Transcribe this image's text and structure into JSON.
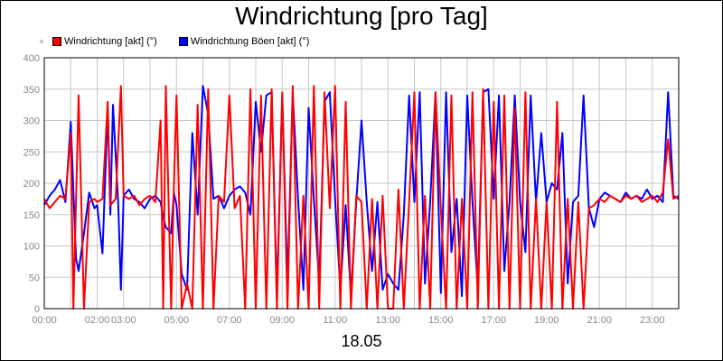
{
  "chart_data": {
    "type": "line",
    "title": "Windrichtung [pro Tag]",
    "subtitle": "18.05",
    "xlabel": "",
    "ylabel": "",
    "ylim": [
      0,
      400
    ],
    "yticks": [
      0,
      50,
      100,
      150,
      200,
      250,
      300,
      350,
      400
    ],
    "xlim": [
      0,
      24
    ],
    "xticks": [
      {
        "h": 0,
        "label": "00:00"
      },
      {
        "h": 2,
        "label": "02:00"
      },
      {
        "h": 3,
        "label": "03:00"
      },
      {
        "h": 5,
        "label": "05:00"
      },
      {
        "h": 7,
        "label": "07:00"
      },
      {
        "h": 9,
        "label": "09:00"
      },
      {
        "h": 11,
        "label": "11:00"
      },
      {
        "h": 13,
        "label": "13:00"
      },
      {
        "h": 15,
        "label": "15:00"
      },
      {
        "h": 17,
        "label": "17:00"
      },
      {
        "h": 19,
        "label": "19:00"
      },
      {
        "h": 21,
        "label": "21:00"
      },
      {
        "h": 23,
        "label": "23:00"
      }
    ],
    "grid": true,
    "legend_position": "top-left",
    "series": [
      {
        "name": "Windrichtung Böen [akt] (°)",
        "color": "#0000ff",
        "points": [
          [
            0.0,
            165
          ],
          [
            0.2,
            180
          ],
          [
            0.4,
            190
          ],
          [
            0.6,
            205
          ],
          [
            0.8,
            170
          ],
          [
            1.0,
            298
          ],
          [
            1.2,
            80
          ],
          [
            1.3,
            60
          ],
          [
            1.5,
            120
          ],
          [
            1.7,
            185
          ],
          [
            1.9,
            160
          ],
          [
            2.0,
            165
          ],
          [
            2.2,
            88
          ],
          [
            2.4,
            320
          ],
          [
            2.5,
            150
          ],
          [
            2.6,
            325
          ],
          [
            2.8,
            165
          ],
          [
            2.9,
            30
          ],
          [
            3.0,
            180
          ],
          [
            3.2,
            190
          ],
          [
            3.4,
            175
          ],
          [
            3.6,
            170
          ],
          [
            3.8,
            160
          ],
          [
            4.0,
            175
          ],
          [
            4.2,
            180
          ],
          [
            4.4,
            170
          ],
          [
            4.5,
            145
          ],
          [
            4.6,
            130
          ],
          [
            4.8,
            120
          ],
          [
            4.9,
            185
          ],
          [
            5.0,
            165
          ],
          [
            5.2,
            55
          ],
          [
            5.4,
            30
          ],
          [
            5.6,
            280
          ],
          [
            5.8,
            150
          ],
          [
            6.0,
            355
          ],
          [
            6.2,
            310
          ],
          [
            6.4,
            175
          ],
          [
            6.6,
            180
          ],
          [
            6.8,
            160
          ],
          [
            7.0,
            180
          ],
          [
            7.2,
            190
          ],
          [
            7.4,
            195
          ],
          [
            7.6,
            185
          ],
          [
            7.8,
            150
          ],
          [
            8.0,
            330
          ],
          [
            8.2,
            250
          ],
          [
            8.4,
            340
          ],
          [
            8.6,
            345
          ],
          [
            8.8,
            20
          ],
          [
            9.0,
            340
          ],
          [
            9.2,
            40
          ],
          [
            9.4,
            345
          ],
          [
            9.6,
            175
          ],
          [
            9.8,
            30
          ],
          [
            10.0,
            320
          ],
          [
            10.2,
            175
          ],
          [
            10.4,
            40
          ],
          [
            10.6,
            330
          ],
          [
            10.8,
            345
          ],
          [
            11.0,
            175
          ],
          [
            11.2,
            30
          ],
          [
            11.4,
            165
          ],
          [
            11.6,
            20
          ],
          [
            11.8,
            170
          ],
          [
            12.0,
            300
          ],
          [
            12.2,
            170
          ],
          [
            12.4,
            60
          ],
          [
            12.6,
            170
          ],
          [
            12.8,
            30
          ],
          [
            13.0,
            55
          ],
          [
            13.2,
            40
          ],
          [
            13.4,
            30
          ],
          [
            13.6,
            150
          ],
          [
            13.8,
            340
          ],
          [
            14.0,
            170
          ],
          [
            14.2,
            345
          ],
          [
            14.4,
            40
          ],
          [
            14.6,
            170
          ],
          [
            14.8,
            345
          ],
          [
            15.0,
            25
          ],
          [
            15.2,
            345
          ],
          [
            15.4,
            90
          ],
          [
            15.6,
            175
          ],
          [
            15.8,
            20
          ],
          [
            16.0,
            340
          ],
          [
            16.2,
            170
          ],
          [
            16.4,
            30
          ],
          [
            16.6,
            345
          ],
          [
            16.8,
            350
          ],
          [
            17.0,
            175
          ],
          [
            17.2,
            340
          ],
          [
            17.4,
            60
          ],
          [
            17.6,
            170
          ],
          [
            17.8,
            340
          ],
          [
            18.0,
            170
          ],
          [
            18.2,
            90
          ],
          [
            18.4,
            340
          ],
          [
            18.6,
            170
          ],
          [
            18.8,
            280
          ],
          [
            19.0,
            170
          ],
          [
            19.2,
            200
          ],
          [
            19.4,
            190
          ],
          [
            19.6,
            280
          ],
          [
            19.8,
            40
          ],
          [
            20.0,
            170
          ],
          [
            20.2,
            180
          ],
          [
            20.4,
            340
          ],
          [
            20.6,
            160
          ],
          [
            20.8,
            130
          ],
          [
            21.0,
            175
          ],
          [
            21.2,
            185
          ],
          [
            21.4,
            180
          ],
          [
            21.6,
            175
          ],
          [
            21.8,
            170
          ],
          [
            22.0,
            185
          ],
          [
            22.2,
            175
          ],
          [
            22.4,
            180
          ],
          [
            22.6,
            175
          ],
          [
            22.8,
            190
          ],
          [
            23.0,
            175
          ],
          [
            23.2,
            180
          ],
          [
            23.4,
            170
          ],
          [
            23.6,
            345
          ],
          [
            23.8,
            180
          ],
          [
            24.0,
            175
          ]
        ]
      },
      {
        "name": "Windrichtung [akt] (°)",
        "color": "#ff0000",
        "points": [
          [
            0.0,
            175
          ],
          [
            0.2,
            160
          ],
          [
            0.4,
            170
          ],
          [
            0.6,
            180
          ],
          [
            0.8,
            175
          ],
          [
            1.0,
            280
          ],
          [
            1.1,
            0
          ],
          [
            1.3,
            340
          ],
          [
            1.5,
            0
          ],
          [
            1.7,
            170
          ],
          [
            1.9,
            175
          ],
          [
            2.0,
            170
          ],
          [
            2.2,
            175
          ],
          [
            2.4,
            330
          ],
          [
            2.5,
            165
          ],
          [
            2.7,
            175
          ],
          [
            2.9,
            355
          ],
          [
            3.0,
            180
          ],
          [
            3.2,
            175
          ],
          [
            3.4,
            180
          ],
          [
            3.6,
            165
          ],
          [
            3.8,
            175
          ],
          [
            4.0,
            180
          ],
          [
            4.2,
            170
          ],
          [
            4.4,
            300
          ],
          [
            4.5,
            0
          ],
          [
            4.6,
            355
          ],
          [
            4.8,
            0
          ],
          [
            4.9,
            190
          ],
          [
            5.0,
            340
          ],
          [
            5.2,
            0
          ],
          [
            5.4,
            40
          ],
          [
            5.6,
            0
          ],
          [
            5.8,
            325
          ],
          [
            6.0,
            0
          ],
          [
            6.2,
            350
          ],
          [
            6.4,
            0
          ],
          [
            6.6,
            180
          ],
          [
            6.8,
            170
          ],
          [
            7.0,
            340
          ],
          [
            7.2,
            160
          ],
          [
            7.4,
            180
          ],
          [
            7.6,
            0
          ],
          [
            7.8,
            350
          ],
          [
            8.0,
            0
          ],
          [
            8.2,
            340
          ],
          [
            8.4,
            0
          ],
          [
            8.6,
            350
          ],
          [
            8.8,
            0
          ],
          [
            9.0,
            345
          ],
          [
            9.2,
            0
          ],
          [
            9.4,
            355
          ],
          [
            9.6,
            0
          ],
          [
            9.8,
            180
          ],
          [
            10.0,
            0
          ],
          [
            10.2,
            355
          ],
          [
            10.4,
            0
          ],
          [
            10.6,
            345
          ],
          [
            10.8,
            160
          ],
          [
            11.0,
            355
          ],
          [
            11.2,
            0
          ],
          [
            11.4,
            330
          ],
          [
            11.6,
            0
          ],
          [
            11.8,
            180
          ],
          [
            12.0,
            170
          ],
          [
            12.2,
            0
          ],
          [
            12.4,
            175
          ],
          [
            12.6,
            0
          ],
          [
            12.8,
            180
          ],
          [
            13.0,
            0
          ],
          [
            13.2,
            0
          ],
          [
            13.4,
            190
          ],
          [
            13.6,
            0
          ],
          [
            13.8,
            170
          ],
          [
            14.0,
            345
          ],
          [
            14.2,
            0
          ],
          [
            14.4,
            180
          ],
          [
            14.6,
            0
          ],
          [
            14.8,
            345
          ],
          [
            15.0,
            160
          ],
          [
            15.2,
            0
          ],
          [
            15.4,
            340
          ],
          [
            15.6,
            0
          ],
          [
            15.8,
            175
          ],
          [
            16.0,
            0
          ],
          [
            16.2,
            345
          ],
          [
            16.4,
            0
          ],
          [
            16.6,
            350
          ],
          [
            16.8,
            0
          ],
          [
            17.0,
            330
          ],
          [
            17.2,
            0
          ],
          [
            17.4,
            340
          ],
          [
            17.6,
            0
          ],
          [
            17.8,
            320
          ],
          [
            18.0,
            0
          ],
          [
            18.2,
            345
          ],
          [
            18.4,
            0
          ],
          [
            18.6,
            175
          ],
          [
            18.8,
            0
          ],
          [
            19.0,
            170
          ],
          [
            19.2,
            0
          ],
          [
            19.4,
            330
          ],
          [
            19.6,
            0
          ],
          [
            19.8,
            175
          ],
          [
            20.0,
            0
          ],
          [
            20.2,
            170
          ],
          [
            20.4,
            0
          ],
          [
            20.6,
            160
          ],
          [
            20.8,
            165
          ],
          [
            21.0,
            175
          ],
          [
            21.2,
            170
          ],
          [
            21.4,
            180
          ],
          [
            21.6,
            175
          ],
          [
            21.8,
            170
          ],
          [
            22.0,
            180
          ],
          [
            22.2,
            175
          ],
          [
            22.4,
            180
          ],
          [
            22.6,
            170
          ],
          [
            22.8,
            175
          ],
          [
            23.0,
            180
          ],
          [
            23.2,
            170
          ],
          [
            23.4,
            185
          ],
          [
            23.6,
            270
          ],
          [
            23.8,
            175
          ],
          [
            24.0,
            180
          ]
        ]
      }
    ]
  },
  "legend": {
    "items": [
      {
        "label": "Windrichtung [akt] (°)",
        "color": "#ff0000"
      },
      {
        "label": "Windrichtung Böen [akt] (°)",
        "color": "#0000ff"
      }
    ]
  }
}
